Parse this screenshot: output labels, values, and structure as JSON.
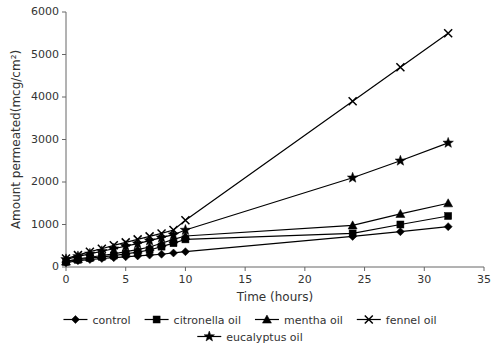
{
  "chart_data": {
    "type": "line",
    "xlabel": "Time (hours)",
    "ylabel": "Amount permeated(mcg/cm²)",
    "xlim": [
      0,
      35
    ],
    "ylim": [
      0,
      6000
    ],
    "xticks": [
      0,
      5,
      10,
      15,
      20,
      25,
      30,
      35
    ],
    "yticks": [
      0,
      1000,
      2000,
      3000,
      4000,
      5000,
      6000
    ],
    "grid": false,
    "legend": "bottom",
    "x": [
      0,
      1,
      2,
      3,
      4,
      5,
      6,
      7,
      8,
      9,
      10,
      24,
      28,
      32
    ],
    "series": [
      {
        "name": "control",
        "color": "#000000",
        "marker": "diamond",
        "values": [
          100,
          150,
          175,
          200,
          220,
          240,
          260,
          280,
          300,
          330,
          360,
          720,
          830,
          950
        ]
      },
      {
        "name": "citronella oil",
        "color": "#000000",
        "marker": "square",
        "values": [
          120,
          170,
          210,
          240,
          270,
          310,
          350,
          400,
          480,
          560,
          650,
          790,
          1000,
          1200
        ]
      },
      {
        "name": "mentha oil",
        "color": "#000000",
        "marker": "triangle",
        "values": [
          130,
          190,
          230,
          270,
          310,
          360,
          410,
          470,
          560,
          650,
          730,
          980,
          1250,
          1500
        ]
      },
      {
        "name": "fennel oil",
        "color": "#000000",
        "marker": "x",
        "values": [
          200,
          280,
          360,
          430,
          510,
          580,
          650,
          720,
          790,
          870,
          1100,
          3900,
          4700,
          5500
        ]
      },
      {
        "name": "eucalyptus oil",
        "color": "#000000",
        "marker": "star",
        "values": [
          180,
          250,
          310,
          370,
          430,
          490,
          550,
          620,
          690,
          760,
          870,
          2100,
          2500,
          2920
        ]
      }
    ]
  }
}
